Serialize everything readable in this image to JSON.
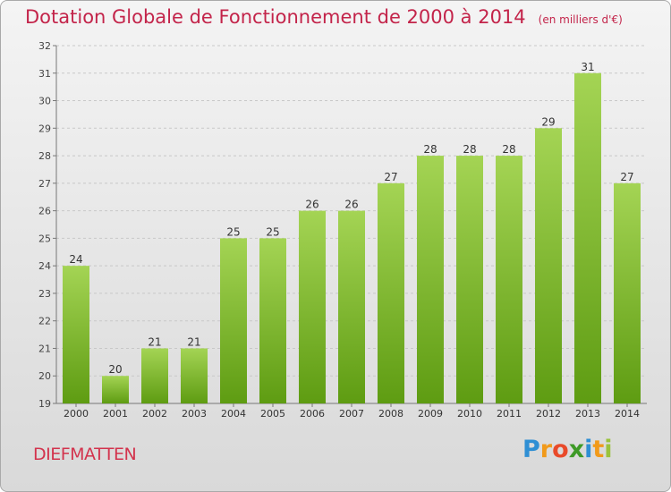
{
  "title": "Dotation Globale de Fonctionnement de 2000 à 2014",
  "subtitle": "(en milliers d'€)",
  "commune": "DIEFMATTEN",
  "logo": {
    "text": "Proxiti",
    "letters": [
      "P",
      "r",
      "o",
      "x",
      "i",
      "t",
      "i"
    ],
    "colors": [
      "#2f8fd4",
      "#f19a1a",
      "#e94a2a",
      "#3e9a27",
      "#2f8fd4",
      "#f19a1a",
      "#9ac33c"
    ]
  },
  "colors": {
    "bar_light": "#a4d454",
    "bar_dark": "#5e9c12",
    "title": "#c3244a",
    "grid": "#c8c8c8"
  },
  "chart_data": {
    "type": "bar",
    "title": "Dotation Globale de Fonctionnement de 2000 à 2014",
    "subtitle": "(en milliers d'€)",
    "categories": [
      "2000",
      "2001",
      "2002",
      "2003",
      "2004",
      "2005",
      "2006",
      "2007",
      "2008",
      "2009",
      "2010",
      "2011",
      "2012",
      "2013",
      "2014"
    ],
    "values": [
      24,
      20,
      21,
      21,
      25,
      25,
      26,
      26,
      27,
      28,
      28,
      28,
      29,
      31,
      27
    ],
    "ylim": [
      19,
      32
    ],
    "yticks": [
      19,
      20,
      21,
      22,
      23,
      24,
      25,
      26,
      27,
      28,
      29,
      30,
      31,
      32
    ],
    "grid": true,
    "xlabel": "",
    "ylabel": ""
  }
}
